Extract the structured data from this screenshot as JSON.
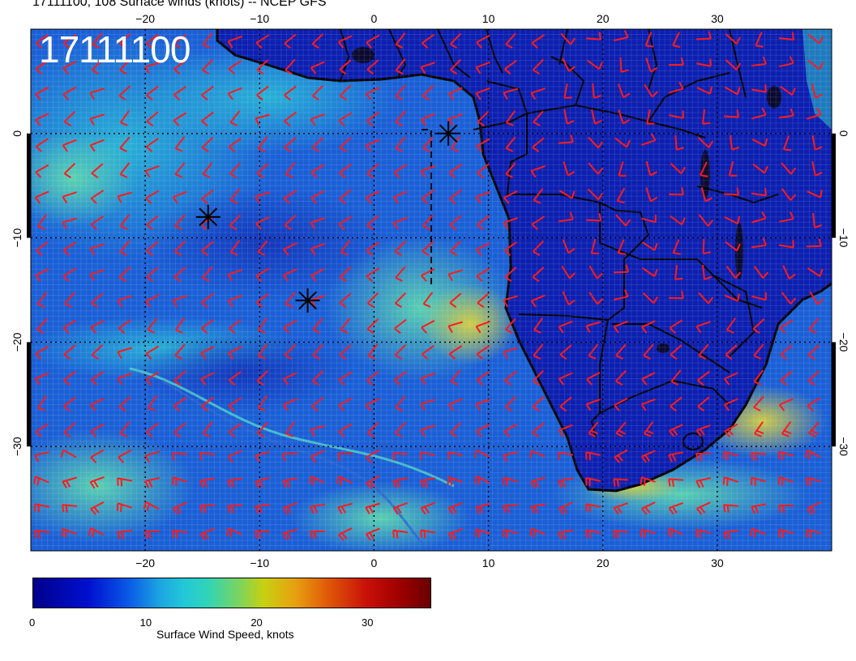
{
  "header": {
    "title": "17111100, 108 Surface winds (knots) -- NCEP GFS"
  },
  "stamp": "17111100",
  "map": {
    "lon_range": [
      -30,
      40
    ],
    "lat_range": [
      -40,
      10
    ],
    "lon_ticks": [
      -20,
      -10,
      0,
      10,
      20,
      30
    ],
    "lat_ticks": [
      0,
      -10,
      -20,
      -30
    ],
    "colors": {
      "ocean_base": "#1a5fd6",
      "land_base": "#0c1fb0",
      "barb": "#ff1a1a",
      "coast": "#000000"
    },
    "markers": [
      {
        "lon": 6.5,
        "lat": 0.0
      },
      {
        "lon": -14.5,
        "lat": -8.0
      },
      {
        "lon": -5.8,
        "lat": -16.0
      }
    ]
  },
  "colorbar": {
    "label": "Surface Wind Speed, knots",
    "ticks": [
      "0",
      "10",
      "20",
      "30"
    ],
    "range": [
      0,
      36
    ]
  }
}
